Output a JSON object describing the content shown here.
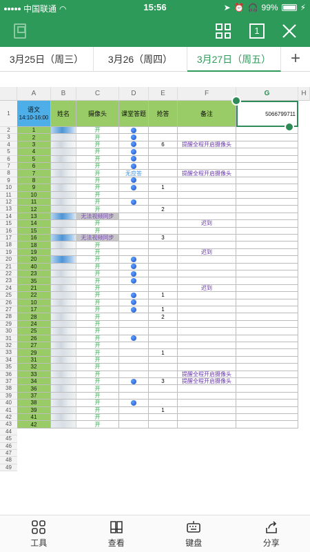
{
  "status_bar": {
    "carrier": "中国联通",
    "time": "15:56",
    "battery": "99%"
  },
  "toolbar": {
    "page_indicator": "1"
  },
  "tabs": [
    {
      "label": "3月25日（周三）"
    },
    {
      "label": "3月26（周四）"
    },
    {
      "label": "3月27日（周五）"
    }
  ],
  "tab_add_label": "+",
  "columns": [
    "A",
    "B",
    "C",
    "D",
    "E",
    "F",
    "G",
    "H"
  ],
  "header_row": {
    "row_number": "1",
    "subject": "语文",
    "time_range": "14:10-16:00",
    "name": "姓名",
    "camera": "摄像头",
    "class_answer": "课堂答题",
    "quick_answer": "抢答",
    "notes": "备注",
    "selected_value": "5066799711"
  },
  "rows": [
    {
      "r": "2",
      "id": "1",
      "cam": "开",
      "dot": true,
      "qa": "",
      "note": ""
    },
    {
      "r": "3",
      "id": "2",
      "cam": "开",
      "dot": true,
      "qa": "",
      "note": ""
    },
    {
      "r": "4",
      "id": "3",
      "cam": "开",
      "dot": true,
      "qa": "6",
      "note": "提醒全程开启摄像头"
    },
    {
      "r": "5",
      "id": "4",
      "cam": "开",
      "dot": true,
      "qa": "",
      "note": ""
    },
    {
      "r": "6",
      "id": "5",
      "cam": "开",
      "dot": true,
      "qa": "",
      "note": ""
    },
    {
      "r": "7",
      "id": "6",
      "cam": "开",
      "dot": true,
      "qa": "",
      "note": ""
    },
    {
      "r": "8",
      "id": "7",
      "cam": "开",
      "ans": "无应答",
      "qa": "",
      "note": "提醒全程开启摄像头"
    },
    {
      "r": "9",
      "id": "8",
      "cam": "开",
      "dot": true,
      "qa": "",
      "note": ""
    },
    {
      "r": "10",
      "id": "9",
      "cam": "开",
      "dot": true,
      "qa": "1",
      "note": ""
    },
    {
      "r": "11",
      "id": "10",
      "cam": "开",
      "qa": "",
      "note": ""
    },
    {
      "r": "12",
      "id": "11",
      "cam": "开",
      "dot": true,
      "qa": "",
      "note": ""
    },
    {
      "r": "13",
      "id": "12",
      "cam": "开",
      "qa": "2",
      "note": ""
    },
    {
      "r": "14",
      "id": "13",
      "cam": "无法视频同步",
      "camtag": true,
      "qa": "",
      "note": ""
    },
    {
      "r": "15",
      "id": "14",
      "cam": "开",
      "qa": "",
      "note": "迟到"
    },
    {
      "r": "16",
      "id": "15",
      "cam": "开",
      "qa": "",
      "note": ""
    },
    {
      "r": "17",
      "id": "16",
      "cam": "无法视频同步",
      "camtag": true,
      "qa": "3",
      "note": ""
    },
    {
      "r": "18",
      "id": "18",
      "cam": "开",
      "qa": "",
      "note": ""
    },
    {
      "r": "19",
      "id": "19",
      "cam": "开",
      "qa": "",
      "note": "迟到"
    },
    {
      "r": "20",
      "id": "20",
      "cam": "开",
      "dot": true,
      "qa": "",
      "note": ""
    },
    {
      "r": "21",
      "id": "40",
      "cam": "开",
      "dot": true,
      "qa": "",
      "note": ""
    },
    {
      "r": "22",
      "id": "23",
      "cam": "开",
      "dot": true,
      "qa": "",
      "note": ""
    },
    {
      "r": "23",
      "id": "35",
      "cam": "开",
      "dot": true,
      "qa": "",
      "note": ""
    },
    {
      "r": "24",
      "id": "21",
      "cam": "开",
      "qa": "",
      "note": "迟到"
    },
    {
      "r": "25",
      "id": "22",
      "cam": "开",
      "dot": true,
      "qa": "1",
      "note": ""
    },
    {
      "r": "26",
      "id": "10",
      "cam": "开",
      "dot": true,
      "qa": "",
      "note": ""
    },
    {
      "r": "27",
      "id": "17",
      "cam": "开",
      "dot": true,
      "qa": "1",
      "note": ""
    },
    {
      "r": "28",
      "id": "28",
      "cam": "开",
      "qa": "2",
      "note": ""
    },
    {
      "r": "29",
      "id": "24",
      "cam": "开",
      "qa": "",
      "note": ""
    },
    {
      "r": "30",
      "id": "25",
      "cam": "开",
      "qa": "",
      "note": ""
    },
    {
      "r": "31",
      "id": "26",
      "cam": "开",
      "dot": true,
      "qa": "",
      "note": ""
    },
    {
      "r": "32",
      "id": "27",
      "cam": "开",
      "qa": "",
      "note": ""
    },
    {
      "r": "33",
      "id": "29",
      "cam": "开",
      "qa": "1",
      "note": ""
    },
    {
      "r": "34",
      "id": "31",
      "cam": "开",
      "qa": "",
      "note": ""
    },
    {
      "r": "35",
      "id": "32",
      "cam": "开",
      "qa": "",
      "note": ""
    },
    {
      "r": "36",
      "id": "33",
      "cam": "开",
      "qa": "",
      "note": "提醒全程开启摄像头"
    },
    {
      "r": "37",
      "id": "34",
      "cam": "开",
      "dot": true,
      "qa": "3",
      "note": "提醒全程开启摄像头"
    },
    {
      "r": "38",
      "id": "36",
      "cam": "开",
      "qa": "",
      "note": ""
    },
    {
      "r": "39",
      "id": "37",
      "cam": "开",
      "qa": "",
      "note": ""
    },
    {
      "r": "40",
      "id": "38",
      "cam": "开",
      "dot": true,
      "qa": "",
      "note": ""
    },
    {
      "r": "41",
      "id": "39",
      "cam": "开",
      "qa": "1",
      "note": ""
    },
    {
      "r": "42",
      "id": "41",
      "cam": "开",
      "qa": "",
      "note": ""
    },
    {
      "r": "43",
      "id": "42",
      "cam": "开",
      "qa": "",
      "note": ""
    }
  ],
  "empty_rows": [
    "44",
    "45",
    "46",
    "47",
    "48",
    "49"
  ],
  "bottom_bar": [
    {
      "label": "工具",
      "icon": "tools-icon"
    },
    {
      "label": "查看",
      "icon": "view-icon"
    },
    {
      "label": "键盘",
      "icon": "keyboard-icon"
    },
    {
      "label": "分享",
      "icon": "share-icon"
    }
  ]
}
